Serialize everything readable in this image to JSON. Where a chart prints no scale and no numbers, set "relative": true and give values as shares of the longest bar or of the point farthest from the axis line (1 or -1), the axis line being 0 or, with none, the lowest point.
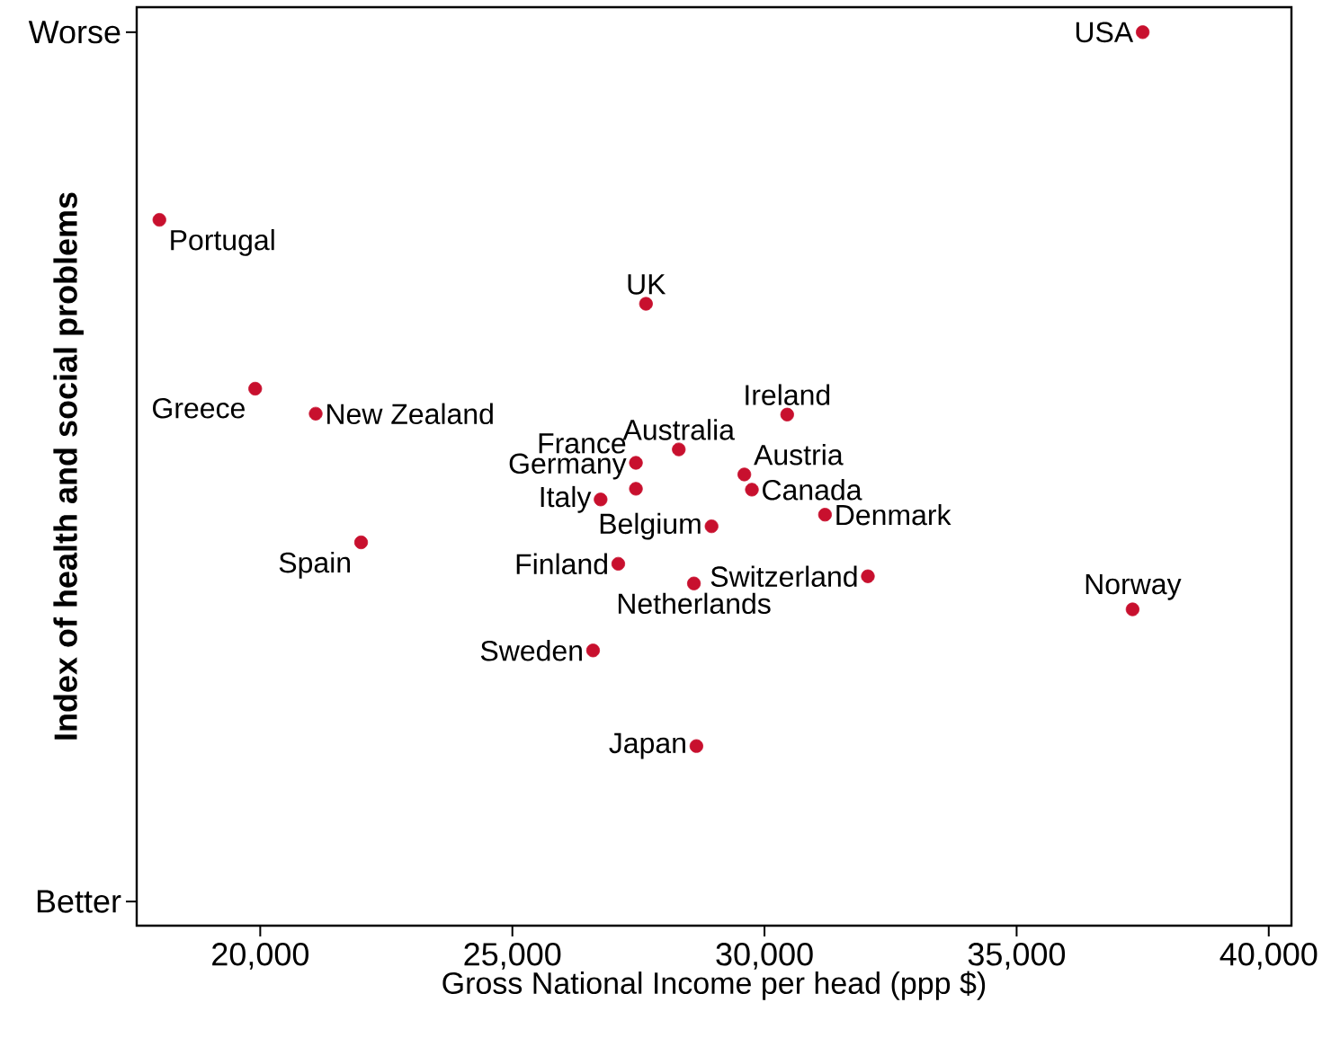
{
  "chart_data": {
    "type": "scatter",
    "relative": true,
    "xlabel": "Gross National Income per head (ppp $)",
    "ylabel": "Index of health and social problems",
    "x": [
      37500,
      18000,
      27650,
      19900,
      21100,
      30450,
      28300,
      27450,
      29600,
      27450,
      29750,
      26750,
      31200,
      28950,
      22000,
      27100,
      32050,
      28600,
      37300,
      26600,
      28650
    ],
    "series": [
      {
        "color": "#c8102e",
        "values": [
          1.0,
          0.79,
          0.696,
          0.601,
          0.573,
          0.572,
          0.533,
          0.518,
          0.505,
          0.489,
          0.488,
          0.477,
          0.46,
          0.447,
          0.429,
          0.405,
          0.391,
          0.383,
          0.354,
          0.308,
          0.201
        ]
      }
    ],
    "annotations": [
      {
        "text": "USA",
        "x": 37500,
        "y": 1.0
      },
      {
        "text": "Portugal",
        "x": 18000,
        "y": 0.79
      },
      {
        "text": "UK",
        "x": 27650,
        "y": 0.696
      },
      {
        "text": "Greece",
        "x": 19900,
        "y": 0.601
      },
      {
        "text": "New Zealand",
        "x": 21100,
        "y": 0.573
      },
      {
        "text": "Ireland",
        "x": 30450,
        "y": 0.572
      },
      {
        "text": "Australia",
        "x": 28300,
        "y": 0.533
      },
      {
        "text": "France",
        "x": 27450,
        "y": 0.518
      },
      {
        "text": "Austria",
        "x": 29600,
        "y": 0.505
      },
      {
        "text": "Germany",
        "x": 27450,
        "y": 0.489
      },
      {
        "text": "Canada",
        "x": 29750,
        "y": 0.488
      },
      {
        "text": "Italy",
        "x": 26750,
        "y": 0.477
      },
      {
        "text": "Denmark",
        "x": 31200,
        "y": 0.46
      },
      {
        "text": "Belgium",
        "x": 28950,
        "y": 0.447
      },
      {
        "text": "Spain",
        "x": 22000,
        "y": 0.429
      },
      {
        "text": "Finland",
        "x": 27100,
        "y": 0.405
      },
      {
        "text": "Switzerland",
        "x": 32050,
        "y": 0.391
      },
      {
        "text": "Netherlands",
        "x": 28600,
        "y": 0.383
      },
      {
        "text": "Norway",
        "x": 37300,
        "y": 0.354
      },
      {
        "text": "Sweden",
        "x": 26600,
        "y": 0.308
      },
      {
        "text": "Japan",
        "x": 28650,
        "y": 0.201
      },
      "Worse",
      "Better"
    ],
    "xlim": [
      17550,
      40450
    ],
    "xticks": [
      {
        "value": 20000,
        "label": "20,000"
      },
      {
        "value": 25000,
        "label": "25,000"
      },
      {
        "value": 30000,
        "label": "30,000"
      },
      {
        "value": 35000,
        "label": "35,000"
      },
      {
        "value": 40000,
        "label": "40,000"
      }
    ],
    "marker": "circle",
    "grid": false
  }
}
